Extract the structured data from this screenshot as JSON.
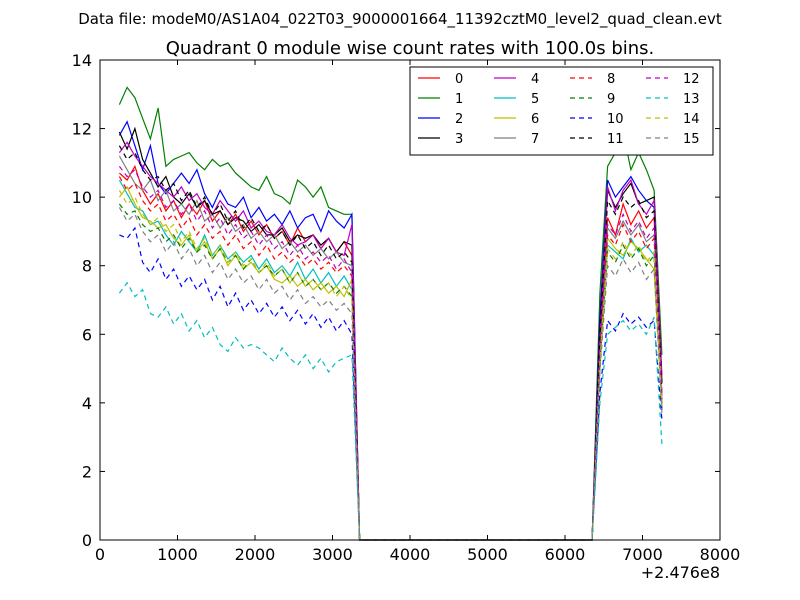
{
  "chart_data": {
    "type": "line",
    "suptitle": "Data file: modeM0/AS1A04_022T03_9000001664_11392cztM0_level2_quad_clean.evt",
    "title": "Quadrant 0 module wise count rates with 100.0s bins.",
    "xlabel": "",
    "ylabel": "",
    "x_offset_label": "+2.476e8",
    "xlim": [
      0,
      8000
    ],
    "ylim": [
      0,
      14
    ],
    "x_ticks": [
      0,
      1000,
      2000,
      3000,
      4000,
      5000,
      6000,
      7000,
      8000
    ],
    "y_ticks": [
      0,
      2,
      4,
      6,
      8,
      10,
      12,
      14
    ],
    "x_tick_labels": [
      "0",
      "1000",
      "2000",
      "3000",
      "4000",
      "5000",
      "6000",
      "7000",
      "8000"
    ],
    "y_tick_labels": [
      "0",
      "2",
      "4",
      "6",
      "8",
      "10",
      "12",
      "14"
    ],
    "legend_position": "top-right",
    "x": [
      250,
      350,
      450,
      550,
      650,
      750,
      850,
      950,
      1050,
      1150,
      1250,
      1350,
      1450,
      1550,
      1650,
      1750,
      1850,
      1950,
      2050,
      2150,
      2250,
      2350,
      2450,
      2550,
      2650,
      2750,
      2850,
      2950,
      3050,
      3150,
      3250,
      3350,
      3450,
      6350,
      6450,
      6550,
      6650,
      6750,
      6850,
      6950,
      7050,
      7150,
      7250
    ],
    "series": [
      {
        "name": "0",
        "color": "#ff0000",
        "dash": "solid",
        "values": [
          10.7,
          10.5,
          10.9,
          10.2,
          9.8,
          10.1,
          9.6,
          9.9,
          9.4,
          9.8,
          9.5,
          9.9,
          9.3,
          9.6,
          9.2,
          9.5,
          9.0,
          9.3,
          8.9,
          9.2,
          8.8,
          9.0,
          8.6,
          9.1,
          8.7,
          8.9,
          8.5,
          8.8,
          8.4,
          8.7,
          8.3,
          0,
          0,
          0,
          5.8,
          9.4,
          8.9,
          9.8,
          9.2,
          9.6,
          9.1,
          9.4,
          4.2
        ]
      },
      {
        "name": "1",
        "color": "#008000",
        "dash": "solid",
        "values": [
          12.7,
          13.2,
          12.9,
          12.3,
          11.7,
          12.6,
          10.9,
          11.1,
          11.2,
          11.3,
          11.0,
          10.8,
          11.1,
          10.9,
          11.0,
          10.7,
          10.5,
          10.3,
          10.2,
          10.6,
          10.1,
          10.0,
          9.8,
          10.5,
          10.3,
          10.0,
          10.3,
          9.7,
          9.6,
          9.5,
          9.5,
          0,
          0,
          0,
          7.2,
          10.9,
          11.3,
          11.9,
          10.8,
          11.3,
          10.8,
          10.2,
          5.4
        ]
      },
      {
        "name": "2",
        "color": "#0000ff",
        "dash": "solid",
        "values": [
          11.8,
          12.2,
          11.5,
          10.8,
          11.5,
          10.4,
          10.1,
          10.4,
          10.7,
          10.4,
          10.8,
          10.1,
          9.7,
          10.2,
          9.8,
          9.7,
          10.0,
          9.4,
          9.7,
          9.3,
          9.5,
          9.2,
          9.6,
          9.1,
          9.4,
          9.5,
          9.0,
          9.6,
          9.3,
          9.1,
          9.5,
          0,
          0,
          0,
          6.5,
          10.5,
          10.0,
          10.3,
          10.6,
          10.2,
          9.9,
          9.7,
          3.8
        ]
      },
      {
        "name": "3",
        "color": "#000000",
        "dash": "solid",
        "values": [
          11.9,
          11.4,
          12.0,
          11.1,
          10.7,
          10.3,
          10.6,
          10.0,
          9.8,
          10.1,
          9.7,
          9.9,
          9.5,
          9.6,
          9.2,
          9.4,
          9.3,
          9.0,
          9.2,
          8.9,
          8.9,
          9.1,
          8.7,
          8.9,
          8.8,
          8.9,
          8.6,
          8.8,
          8.4,
          8.7,
          8.6,
          0,
          0,
          0,
          6.2,
          10.2,
          9.7,
          10.1,
          10.4,
          9.8,
          9.9,
          10.0,
          4.6
        ]
      },
      {
        "name": "4",
        "color": "#bf00bf",
        "dash": "solid",
        "values": [
          11.3,
          11.6,
          11.2,
          10.9,
          10.6,
          10.4,
          10.2,
          10.0,
          10.3,
          9.9,
          10.1,
          9.7,
          9.5,
          9.9,
          9.6,
          9.3,
          9.6,
          9.1,
          9.3,
          9.0,
          8.9,
          9.2,
          8.8,
          8.6,
          8.7,
          8.9,
          8.5,
          8.8,
          8.4,
          8.3,
          9.2,
          0,
          0,
          0,
          5.9,
          10.3,
          9.6,
          10.2,
          10.5,
          9.8,
          9.5,
          9.9,
          4.8
        ]
      },
      {
        "name": "5",
        "color": "#00bfbf",
        "dash": "solid",
        "values": [
          10.5,
          10.1,
          9.7,
          9.6,
          9.2,
          9.3,
          8.9,
          8.6,
          9.0,
          8.7,
          8.4,
          8.9,
          8.3,
          8.6,
          8.2,
          8.4,
          8.1,
          8.3,
          7.9,
          8.2,
          7.8,
          8.0,
          7.7,
          8.1,
          7.6,
          7.9,
          7.5,
          7.8,
          7.4,
          7.7,
          7.3,
          0,
          0,
          0,
          5.2,
          8.6,
          8.4,
          8.2,
          8.8,
          8.4,
          8.6,
          8.3,
          4.0
        ]
      },
      {
        "name": "6",
        "color": "#bfbf00",
        "dash": "solid",
        "values": [
          10.0,
          10.3,
          9.8,
          9.4,
          9.3,
          9.1,
          9.2,
          8.8,
          8.6,
          8.9,
          8.4,
          8.7,
          8.2,
          8.5,
          8.0,
          8.3,
          7.9,
          8.1,
          7.8,
          8.0,
          7.6,
          7.5,
          7.7,
          7.4,
          7.6,
          7.3,
          7.5,
          7.2,
          7.4,
          7.1,
          7.6,
          0,
          0,
          0,
          5.0,
          8.8,
          8.5,
          8.3,
          8.7,
          8.5,
          8.2,
          7.9,
          3.9
        ]
      },
      {
        "name": "7",
        "color": "#808080",
        "dash": "solid",
        "values": [
          11.2,
          10.8,
          10.4,
          10.2,
          10.5,
          9.9,
          10.2,
          9.6,
          9.8,
          9.5,
          9.9,
          9.3,
          9.5,
          9.1,
          9.4,
          9.0,
          9.2,
          8.8,
          9.0,
          8.7,
          8.9,
          8.5,
          8.7,
          8.4,
          8.6,
          8.3,
          8.5,
          8.2,
          8.4,
          8.1,
          8.0,
          0,
          0,
          0,
          5.6,
          9.1,
          8.8,
          9.3,
          8.9,
          9.2,
          8.7,
          8.9,
          4.2
        ]
      },
      {
        "name": "8",
        "color": "#ff0000",
        "dash": "dashed",
        "values": [
          10.6,
          10.2,
          10.4,
          9.9,
          9.6,
          9.8,
          9.3,
          9.5,
          9.1,
          9.4,
          8.9,
          9.2,
          8.8,
          9.0,
          8.6,
          8.9,
          8.5,
          8.7,
          8.3,
          8.6,
          8.2,
          8.4,
          8.1,
          8.3,
          8.0,
          8.2,
          7.9,
          8.1,
          7.8,
          8.0,
          7.7,
          0,
          0,
          0,
          5.5,
          8.9,
          8.6,
          9.2,
          8.7,
          9.0,
          8.5,
          8.8,
          4.1
        ]
      },
      {
        "name": "9",
        "color": "#008000",
        "dash": "dashed",
        "values": [
          9.8,
          9.5,
          9.6,
          9.2,
          9.0,
          9.1,
          8.7,
          8.9,
          8.5,
          8.8,
          8.4,
          8.6,
          8.2,
          8.5,
          8.1,
          8.3,
          7.9,
          8.2,
          7.8,
          8.0,
          7.7,
          7.9,
          7.5,
          7.8,
          7.4,
          7.6,
          7.3,
          7.5,
          7.2,
          7.4,
          7.1,
          0,
          0,
          0,
          5.1,
          8.4,
          8.1,
          8.6,
          8.2,
          8.5,
          8.0,
          8.3,
          3.9
        ]
      },
      {
        "name": "10",
        "color": "#0000ff",
        "dash": "dashed",
        "values": [
          8.9,
          8.8,
          9.1,
          8.1,
          7.8,
          8.2,
          7.6,
          7.9,
          7.4,
          7.7,
          7.3,
          7.6,
          7.0,
          7.4,
          6.8,
          7.2,
          6.7,
          7.0,
          6.6,
          6.9,
          6.5,
          6.8,
          6.4,
          6.7,
          6.3,
          6.6,
          6.2,
          6.5,
          6.1,
          6.4,
          6.0,
          0,
          0,
          0,
          4.3,
          6.4,
          6.1,
          6.6,
          6.3,
          6.5,
          6.2,
          6.4,
          3.5
        ]
      },
      {
        "name": "11",
        "color": "#000000",
        "dash": "dashed",
        "values": [
          11.5,
          11.1,
          11.3,
          10.8,
          10.5,
          10.6,
          10.2,
          10.4,
          9.9,
          10.2,
          9.7,
          10.0,
          9.5,
          9.8,
          9.3,
          9.6,
          9.1,
          9.4,
          9.0,
          9.2,
          8.8,
          9.0,
          8.6,
          8.9,
          8.5,
          8.7,
          8.3,
          8.6,
          8.2,
          8.4,
          8.1,
          0,
          0,
          0,
          5.9,
          9.9,
          9.5,
          10.0,
          9.7,
          9.9,
          9.4,
          9.6,
          4.5
        ]
      },
      {
        "name": "12",
        "color": "#bf00bf",
        "dash": "dashed",
        "values": [
          10.9,
          10.6,
          10.8,
          10.3,
          10.0,
          10.2,
          9.7,
          9.9,
          9.5,
          9.8,
          9.3,
          9.6,
          9.1,
          9.4,
          8.9,
          9.2,
          8.8,
          9.0,
          8.6,
          8.9,
          8.5,
          8.7,
          8.3,
          8.6,
          8.2,
          8.4,
          8.1,
          8.3,
          7.9,
          8.2,
          7.8,
          0,
          0,
          0,
          5.6,
          9.2,
          8.9,
          9.5,
          9.0,
          9.3,
          8.8,
          9.1,
          4.3
        ]
      },
      {
        "name": "13",
        "color": "#00bfbf",
        "dash": "dashed",
        "values": [
          7.2,
          7.5,
          7.1,
          7.3,
          6.6,
          6.5,
          6.8,
          6.3,
          6.6,
          6.1,
          6.4,
          5.9,
          6.2,
          5.7,
          5.5,
          5.9,
          5.6,
          5.7,
          5.6,
          5.4,
          5.2,
          5.6,
          5.3,
          5.1,
          5.4,
          5.0,
          5.3,
          4.9,
          5.2,
          5.3,
          5.4,
          0,
          0,
          0,
          4.0,
          6.0,
          6.2,
          6.4,
          6.1,
          6.3,
          6.0,
          6.5,
          2.8
        ]
      },
      {
        "name": "14",
        "color": "#bfbf00",
        "dash": "dashed",
        "values": [
          10.2,
          9.8,
          10.0,
          9.5,
          9.2,
          9.4,
          9.0,
          9.2,
          8.7,
          9.0,
          8.5,
          8.8,
          8.3,
          8.6,
          8.1,
          8.4,
          8.0,
          8.2,
          7.8,
          8.1,
          7.7,
          7.9,
          7.5,
          7.8,
          7.4,
          7.6,
          7.3,
          7.5,
          7.1,
          7.4,
          7.0,
          0,
          0,
          0,
          5.2,
          8.5,
          8.2,
          8.7,
          8.3,
          8.6,
          8.1,
          8.4,
          3.9
        ]
      },
      {
        "name": "15",
        "color": "#808080",
        "dash": "dashed",
        "values": [
          9.7,
          9.3,
          9.5,
          9.0,
          8.7,
          8.9,
          8.4,
          8.7,
          8.2,
          8.5,
          8.0,
          8.3,
          7.8,
          8.1,
          7.6,
          7.9,
          7.5,
          7.7,
          7.3,
          7.6,
          7.2,
          7.4,
          7.0,
          7.3,
          6.9,
          7.1,
          6.8,
          7.0,
          6.7,
          6.9,
          6.6,
          0,
          0,
          0,
          4.9,
          8.0,
          7.7,
          8.2,
          7.8,
          8.1,
          7.6,
          7.9,
          3.7
        ]
      }
    ]
  }
}
